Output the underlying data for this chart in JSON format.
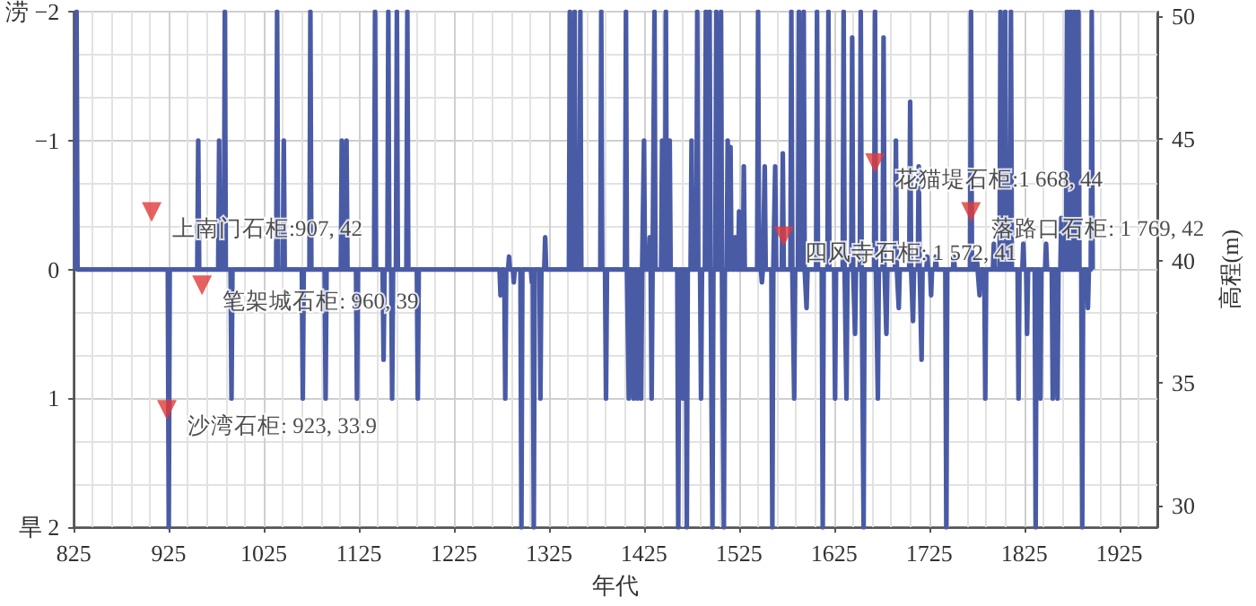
{
  "chart_data": {
    "type": "line",
    "xlabel": "年代",
    "y2label": "高程(m)",
    "grid": true,
    "xlim": [
      825,
      1965
    ],
    "xticks": [
      825,
      925,
      1025,
      1125,
      1225,
      1325,
      1425,
      1525,
      1625,
      1725,
      1825,
      1925
    ],
    "ylim": [
      2,
      -2
    ],
    "yticks": [
      {
        "value": -2,
        "label": "涝 −2"
      },
      {
        "value": -1,
        "label": "−1"
      },
      0,
      1,
      {
        "value": 2,
        "label": "旱 2"
      }
    ],
    "y2lim": [
      29.1,
      50.2
    ],
    "y2ticks": [
      30,
      35,
      40,
      45,
      50
    ],
    "series": [
      {
        "color": "#4a5ba6",
        "marker": "none",
        "x": [
          827,
          828,
          829,
          924,
          925,
          926,
          955,
          956,
          957,
          977,
          978,
          979,
          983,
          984,
          985,
          990,
          991,
          992,
          1038,
          1039,
          1040,
          1045,
          1046,
          1047,
          1065,
          1066,
          1067,
          1073,
          1074,
          1075,
          1089,
          1090,
          1091,
          1106,
          1107,
          1108,
          1111,
          1112,
          1113,
          1122,
          1123,
          1124,
          1141,
          1142,
          1143,
          1150,
          1151,
          1152,
          1155,
          1156,
          1157,
          1159,
          1160,
          1161,
          1164,
          1165,
          1166,
          1175,
          1176,
          1177,
          1186,
          1187,
          1188,
          1273,
          1274,
          1275,
          1278,
          1279,
          1280,
          1282,
          1283,
          1284,
          1287,
          1288,
          1289,
          1295,
          1296,
          1297,
          1306,
          1307,
          1308,
          1308,
          1309,
          1310,
          1315,
          1316,
          1317,
          1320,
          1321,
          1322,
          1346,
          1347,
          1348,
          1351,
          1352,
          1353,
          1357,
          1358,
          1359,
          1379,
          1380,
          1381,
          1384,
          1385,
          1386,
          1405,
          1406,
          1407,
          1408,
          1409,
          1410,
          1413,
          1414,
          1415,
          1417,
          1418,
          1419,
          1421,
          1422,
          1423,
          1424,
          1425,
          1426,
          1430,
          1431,
          1432,
          1432,
          1433,
          1434,
          1435,
          1436,
          1437,
          1443,
          1444,
          1445,
          1447,
          1448,
          1449,
          1451,
          1452,
          1453,
          1460,
          1461,
          1462,
          1465,
          1466,
          1467,
          1469,
          1470,
          1471,
          1474,
          1475,
          1476,
          1480,
          1481,
          1482,
          1484,
          1485,
          1486,
          1489,
          1490,
          1491,
          1493,
          1494,
          1495,
          1496,
          1497,
          1498,
          1500,
          1501,
          1502,
          1505,
          1506,
          1507,
          1508,
          1509,
          1510,
          1512,
          1513,
          1514,
          1515,
          1516,
          1517,
          1520,
          1521,
          1522,
          1524,
          1525,
          1526,
          1529,
          1530,
          1531,
          1544,
          1545,
          1546,
          1548,
          1549,
          1550,
          1551,
          1552,
          1553,
          1559,
          1560,
          1561,
          1562,
          1563,
          1564,
          1570,
          1571,
          1572,
          1579,
          1580,
          1581,
          1582,
          1583,
          1584,
          1587,
          1588,
          1589,
          1592,
          1593,
          1594,
          1595,
          1596,
          1597,
          1606,
          1607,
          1608,
          1612,
          1613,
          1614,
          1618,
          1619,
          1620,
          1625,
          1626,
          1627,
          1634,
          1635,
          1636,
          1637,
          1638,
          1639,
          1643,
          1644,
          1645,
          1646,
          1647,
          1648,
          1652,
          1653,
          1654,
          1655,
          1656,
          1657,
          1667,
          1668,
          1669,
          1670,
          1671,
          1672,
          1676,
          1677,
          1678,
          1679,
          1680,
          1681,
          1689,
          1690,
          1691,
          1692,
          1693,
          1694,
          1704,
          1705,
          1706,
          1707,
          1708,
          1709,
          1713,
          1714,
          1715,
          1716,
          1717,
          1718,
          1722,
          1723,
          1724,
          1726,
          1727,
          1728,
          1731,
          1732,
          1733,
          1742,
          1743,
          1744,
          1750,
          1751,
          1752,
          1768,
          1769,
          1770,
          1774,
          1775,
          1776,
          1777,
          1778,
          1779,
          1783,
          1784,
          1785,
          1792,
          1793,
          1794,
          1799,
          1800,
          1801,
          1804,
          1805,
          1806,
          1810,
          1811,
          1812,
          1818,
          1819,
          1820,
          1823,
          1824,
          1825,
          1827,
          1828,
          1829,
          1836,
          1837,
          1838,
          1841,
          1842,
          1843,
          1847,
          1848,
          1849,
          1854,
          1855,
          1856,
          1859,
          1860,
          1861,
          1863,
          1864,
          1865,
          1869,
          1870,
          1871,
          1873,
          1874,
          1875,
          1877,
          1878,
          1879,
          1881,
          1882,
          1883,
          1885,
          1886,
          1887,
          1891,
          1892,
          1893,
          1895,
          1896,
          1897
        ],
        "values": [
          0,
          -2,
          0,
          0,
          2,
          0,
          0,
          -1,
          0,
          0,
          -1,
          0,
          0,
          -2,
          0,
          0,
          1,
          0,
          0,
          -2,
          0,
          0,
          -1,
          0,
          0,
          1,
          0,
          0,
          -2,
          0,
          0,
          1,
          0,
          0,
          -1,
          0,
          0,
          -1,
          0,
          0,
          1,
          0,
          0,
          -2,
          0,
          0,
          0.7,
          0,
          0,
          -2,
          0,
          0,
          1,
          0,
          0,
          -2,
          0,
          0,
          -2,
          0,
          0,
          1,
          0,
          0,
          0.2,
          0,
          0,
          1,
          0,
          0,
          -0.1,
          0,
          0,
          0.1,
          0,
          0,
          2,
          0,
          0,
          0.1,
          0,
          0,
          2,
          0,
          0,
          1,
          0,
          0,
          -0.25,
          0,
          0,
          -2,
          0,
          0,
          -2,
          0,
          0,
          -2,
          0,
          0,
          -2,
          0,
          0,
          1,
          0,
          0,
          -2,
          0,
          0,
          1,
          0,
          0,
          1,
          0,
          0,
          1,
          0,
          0,
          1,
          0,
          0,
          -1,
          0,
          0,
          -0.25,
          0,
          0,
          1,
          0,
          0,
          -2,
          0,
          0,
          -1,
          0,
          0,
          -2,
          0,
          0,
          -1,
          0,
          0,
          2,
          0,
          0,
          1,
          0,
          0,
          2,
          0,
          0,
          -1,
          0,
          0,
          -2,
          0,
          0,
          1,
          0,
          0,
          -2,
          0,
          0,
          -2,
          0,
          0,
          2,
          0,
          0,
          -2,
          0,
          0,
          -2,
          0,
          0,
          2,
          0,
          0,
          -1,
          0,
          0,
          -0.95,
          0,
          0,
          -0.25,
          0,
          0,
          -0.45,
          0,
          0,
          -0.8,
          0,
          0,
          -2,
          0,
          0,
          0.1,
          0,
          0,
          -0.8,
          0,
          0,
          2,
          0,
          0,
          -0.8,
          0,
          0,
          -0.9,
          0,
          0,
          -2,
          0,
          0,
          1,
          0,
          0,
          -2,
          0,
          0,
          -2,
          0,
          0,
          0.3,
          0,
          0,
          -2,
          0,
          0,
          2,
          0,
          0,
          -2,
          0,
          0,
          1,
          0,
          0,
          -2,
          0,
          0,
          1,
          0,
          0,
          -1.8,
          0,
          0,
          0.5,
          0,
          0,
          -2,
          0,
          0,
          2,
          0,
          0,
          -2,
          0,
          0,
          1,
          0,
          0,
          -1.8,
          0,
          0,
          0.5,
          0,
          0,
          -1,
          0,
          0,
          0.3,
          0,
          0,
          -1.3,
          0,
          0,
          0.4,
          0,
          0,
          -0.8,
          0,
          0,
          0.7,
          0,
          0,
          -0.1,
          0,
          0,
          0.2,
          0,
          0,
          -0.1,
          0,
          0,
          2,
          0,
          0,
          -0.1,
          0,
          0,
          -2,
          0,
          0,
          -0.1,
          0,
          0,
          0.2,
          0,
          0,
          1,
          0,
          0,
          -0.2,
          0,
          0,
          -2,
          0,
          0,
          -2,
          0,
          0,
          -2,
          0,
          0,
          1,
          0,
          0,
          -0.2,
          0,
          0,
          0.5,
          0,
          0,
          2,
          0,
          0,
          1,
          0,
          0,
          -0.2,
          0,
          0,
          1,
          0,
          0,
          1,
          0,
          0,
          -0.4,
          0,
          0,
          -2,
          0,
          0,
          -2,
          0,
          0,
          -2,
          0,
          0,
          -2,
          0,
          0,
          2,
          0,
          0,
          0.3,
          0,
          0,
          -2,
          0
        ]
      },
      {
        "type": "scatter",
        "axis": "y2",
        "color": "#e03a3a",
        "marker": "triangle",
        "x": [
          907,
          960,
          923,
          1572,
          1668,
          1769
        ],
        "values": [
          42,
          39,
          33.9,
          41,
          44,
          42
        ],
        "value_labels": [
          "上南门石柜:907, 42",
          "笔架城石柜: 960, 39",
          "沙湾石柜: 923, 33.9",
          "四风寺石柜: 1 572, 41",
          "花猫堤石柜:1 668, 44",
          "落路口石柜: 1 769, 42"
        ]
      }
    ]
  }
}
